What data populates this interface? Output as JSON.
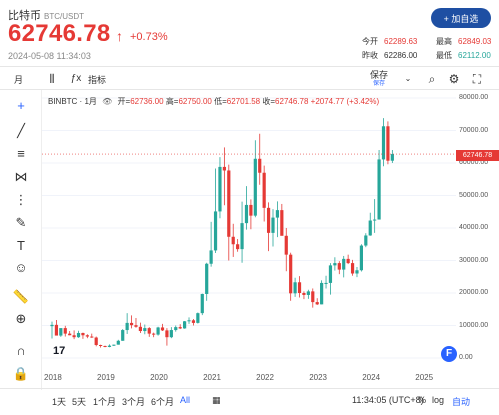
{
  "header": {
    "name": "比特币",
    "pair": "BTC/USDT",
    "price": "62746.78",
    "change": "+0.73%",
    "time": "2024-05-08 11:34:03",
    "add_button": "+ 加自选",
    "stats": {
      "open_label": "今开",
      "open": "62289.63",
      "high_label": "最高",
      "high": "62849.03",
      "prev_label": "昨收",
      "prev": "62286.00",
      "low_label": "最低",
      "low": "62112.00"
    }
  },
  "toolbar": {
    "interval": "月",
    "indicators": "指标",
    "save": "保存",
    "save_sub": "保存"
  },
  "legend": {
    "symbol": "BINBTC · 1月",
    "open_label": "开=",
    "open": "62736.00",
    "high_label": "高=",
    "high": "62750.00",
    "low_label": "低=",
    "low": "62701.58",
    "close_label": "收=",
    "close": "62746.78",
    "change": "+2074.77 (+3.42%)"
  },
  "price_tag": "62746.78",
  "bottom": {
    "ranges": [
      "1天",
      "5天",
      "1个月",
      "3个月",
      "6个月",
      "All"
    ],
    "clock": "11:34:05 (UTC+8)",
    "log": "%",
    "log2": "log",
    "auto": "自动"
  },
  "colors": {
    "up": "#26a69a",
    "down": "#e53935",
    "accent": "#2962ff"
  },
  "chart_data": {
    "type": "candlestick",
    "y_ticks": [
      80000,
      70000,
      60000,
      50000,
      40000,
      30000,
      20000,
      10000,
      0
    ],
    "y_tick_labels": [
      "80000.00",
      "70000.00",
      "60000.00",
      "50000.00",
      "40000.00",
      "30000.00",
      "20000.00",
      "10000.00",
      "0.00"
    ],
    "x_ticks": [
      "2018",
      "2019",
      "2020",
      "2021",
      "2022",
      "2023",
      "2024",
      "2025"
    ],
    "ylim": [
      0,
      80000
    ],
    "candles": [
      [
        9800,
        11200,
        6000,
        10200
      ],
      [
        10200,
        11700,
        7600,
        6900
      ],
      [
        6900,
        9000,
        6500,
        9200
      ],
      [
        9200,
        9900,
        6600,
        7500
      ],
      [
        7500,
        8300,
        7000,
        7000
      ],
      [
        7000,
        8500,
        5800,
        6400
      ],
      [
        6400,
        8400,
        6200,
        7700
      ],
      [
        7700,
        7800,
        5900,
        7000
      ],
      [
        7000,
        7300,
        6100,
        6600
      ],
      [
        6600,
        7500,
        6200,
        6300
      ],
      [
        6300,
        6600,
        3600,
        4000
      ],
      [
        4000,
        4100,
        3200,
        3700
      ],
      [
        3700,
        3800,
        3300,
        3400
      ],
      [
        3400,
        4200,
        3300,
        3800
      ],
      [
        3800,
        4100,
        3700,
        4100
      ],
      [
        4100,
        5600,
        4100,
        5300
      ],
      [
        5300,
        8900,
        5300,
        8600
      ],
      [
        8600,
        13800,
        7400,
        10800
      ],
      [
        10800,
        13100,
        9100,
        10100
      ],
      [
        10100,
        12300,
        9300,
        9600
      ],
      [
        9600,
        10900,
        7700,
        8300
      ],
      [
        8300,
        10300,
        7300,
        9200
      ],
      [
        9200,
        9500,
        6500,
        7500
      ],
      [
        7500,
        7800,
        6400,
        7200
      ],
      [
        7200,
        9600,
        6900,
        9400
      ],
      [
        9400,
        10500,
        8300,
        8500
      ],
      [
        8500,
        9200,
        3800,
        6400
      ],
      [
        6400,
        9500,
        6100,
        8600
      ],
      [
        8600,
        10000,
        8100,
        9500
      ],
      [
        9500,
        10400,
        8900,
        9100
      ],
      [
        9100,
        11400,
        9000,
        11300
      ],
      [
        11300,
        12500,
        10500,
        11600
      ],
      [
        11600,
        12000,
        10000,
        10800
      ],
      [
        10800,
        14000,
        10600,
        13800
      ],
      [
        13800,
        19800,
        13200,
        19700
      ],
      [
        19700,
        29300,
        17600,
        29000
      ],
      [
        29000,
        41900,
        28100,
        33100
      ],
      [
        33100,
        58300,
        32300,
        45100
      ],
      [
        45100,
        61800,
        43000,
        58800
      ],
      [
        58800,
        64800,
        47000,
        57700
      ],
      [
        57700,
        59500,
        30000,
        37300
      ],
      [
        37300,
        41300,
        31100,
        35000
      ],
      [
        35000,
        36600,
        32700,
        33500
      ],
      [
        33500,
        48100,
        29300,
        41500
      ],
      [
        41500,
        52900,
        39500,
        47100
      ],
      [
        47100,
        48800,
        39600,
        43800
      ],
      [
        43800,
        67000,
        43300,
        61300
      ],
      [
        61300,
        69000,
        53300,
        57000
      ],
      [
        57000,
        59200,
        42000,
        46200
      ],
      [
        46200,
        47900,
        32900,
        38500
      ],
      [
        38500,
        45800,
        34300,
        43200
      ],
      [
        43200,
        48200,
        37200,
        45500
      ],
      [
        45500,
        47400,
        37700,
        37600
      ],
      [
        37600,
        40000,
        26700,
        31800
      ],
      [
        31800,
        32400,
        17600,
        19900
      ],
      [
        19900,
        24700,
        18800,
        23300
      ],
      [
        23300,
        25200,
        18600,
        20000
      ],
      [
        20000,
        20500,
        18100,
        19400
      ],
      [
        19400,
        21000,
        18200,
        20500
      ],
      [
        20500,
        21400,
        15500,
        17200
      ],
      [
        17200,
        18400,
        16300,
        16500
      ],
      [
        16500,
        23900,
        16500,
        23100
      ],
      [
        23100,
        25300,
        21400,
        23100
      ],
      [
        23100,
        29200,
        19500,
        28500
      ],
      [
        28500,
        31000,
        26900,
        29200
      ],
      [
        29200,
        29800,
        25800,
        27200
      ],
      [
        27200,
        31400,
        24800,
        30500
      ],
      [
        30500,
        31800,
        28900,
        29200
      ],
      [
        29200,
        30200,
        25300,
        26000
      ],
      [
        26000,
        28000,
        24900,
        27000
      ],
      [
        27000,
        35000,
        26600,
        34600
      ],
      [
        34600,
        38400,
        34100,
        37700
      ],
      [
        37700,
        44700,
        37600,
        42300
      ],
      [
        42300,
        48900,
        38500,
        42600
      ],
      [
        42600,
        64000,
        42600,
        61100
      ],
      [
        61100,
        73800,
        59000,
        71300
      ],
      [
        71300,
        72800,
        59600,
        60700
      ],
      [
        60700,
        64000,
        60000,
        62747
      ]
    ]
  }
}
